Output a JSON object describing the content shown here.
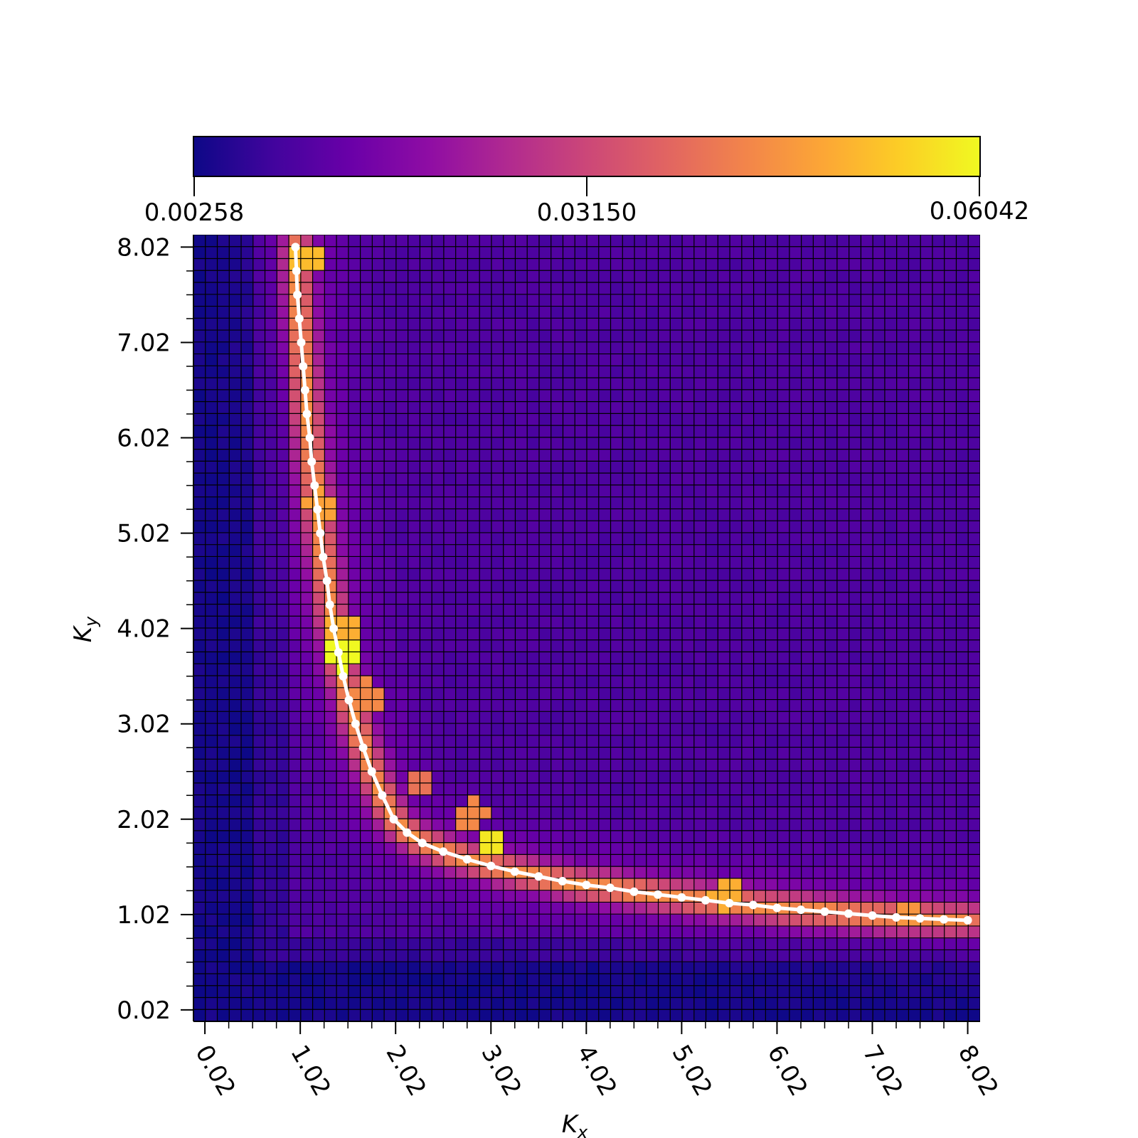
{
  "chart_data": {
    "type": "heatmap",
    "xlabel": "K",
    "xlabel_sub": "x",
    "ylabel": "K",
    "ylabel_sub": "y",
    "x_range": [
      -0.1,
      8.15
    ],
    "y_range": [
      -0.1,
      8.15
    ],
    "grid": true,
    "grid_cells": 66,
    "colormap": "plasma",
    "colorbar": {
      "placement": "top",
      "min": 0.00258,
      "mid": 0.0315,
      "max": 0.06042,
      "tick_labels": [
        "0.00258",
        "0.03150",
        "0.06042"
      ]
    },
    "x_tick_values": [
      0.02,
      1.02,
      2.02,
      3.02,
      4.02,
      5.02,
      6.02,
      7.02,
      8.02
    ],
    "x_tick_labels": [
      "0.02",
      "1.02",
      "2.02",
      "3.02",
      "4.02",
      "5.02",
      "6.02",
      "7.02",
      "8.02"
    ],
    "y_tick_values": [
      0.02,
      1.02,
      2.02,
      3.02,
      4.02,
      5.02,
      6.02,
      7.02,
      8.02
    ],
    "y_tick_labels": [
      "0.02",
      "1.02",
      "2.02",
      "3.02",
      "4.02",
      "5.02",
      "6.02",
      "7.02",
      "8.02"
    ],
    "value_background": 0.0102,
    "value_low_strip": 0.0035,
    "hotspots": [
      {
        "x": 1.45,
        "y": 3.75,
        "value": 0.0604
      },
      {
        "x": 3.02,
        "y": 1.75,
        "value": 0.058
      },
      {
        "x": 1.45,
        "y": 4.0,
        "value": 0.05
      },
      {
        "x": 1.1,
        "y": 7.9,
        "value": 0.052
      },
      {
        "x": 1.25,
        "y": 5.3,
        "value": 0.048
      },
      {
        "x": 5.5,
        "y": 1.25,
        "value": 0.05
      },
      {
        "x": 7.4,
        "y": 1.0,
        "value": 0.046
      },
      {
        "x": 2.8,
        "y": 2.05,
        "value": 0.044
      },
      {
        "x": 1.7,
        "y": 3.3,
        "value": 0.044
      },
      {
        "x": 2.3,
        "y": 2.4,
        "value": 0.04
      }
    ],
    "series": [
      {
        "type": "line",
        "color": "#ffffff",
        "x": [
          0.97,
          0.98,
          0.99,
          1.01,
          1.03,
          1.05,
          1.07,
          1.09,
          1.12,
          1.14,
          1.17,
          1.2,
          1.23,
          1.26,
          1.3,
          1.33,
          1.37,
          1.42,
          1.47,
          1.53,
          1.6,
          1.68,
          1.77,
          1.88,
          2.0,
          2.14,
          2.3,
          2.52,
          2.77,
          3.02,
          3.27,
          3.52,
          3.77,
          4.02,
          4.27,
          4.52,
          4.77,
          5.02,
          5.27,
          5.52,
          5.77,
          6.02,
          6.27,
          6.52,
          6.77,
          7.02,
          7.27,
          7.52,
          7.77,
          8.02
        ],
        "y": [
          8.02,
          7.77,
          7.52,
          7.27,
          7.02,
          6.77,
          6.52,
          6.27,
          6.02,
          5.77,
          5.52,
          5.27,
          5.02,
          4.77,
          4.52,
          4.27,
          4.02,
          3.77,
          3.52,
          3.27,
          3.02,
          2.77,
          2.52,
          2.27,
          2.02,
          1.88,
          1.77,
          1.68,
          1.6,
          1.53,
          1.47,
          1.42,
          1.37,
          1.33,
          1.3,
          1.26,
          1.23,
          1.2,
          1.17,
          1.14,
          1.12,
          1.09,
          1.07,
          1.05,
          1.03,
          1.01,
          0.99,
          0.98,
          0.97,
          0.96
        ]
      }
    ]
  }
}
